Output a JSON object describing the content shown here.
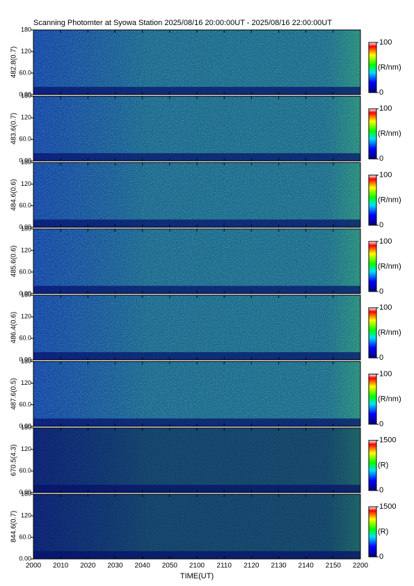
{
  "chart_data": {
    "type": "heatmap",
    "title": "Scanning Photomter at Syowa Station 2025/08/16 20:00:00UT - 2025/08/16 22:00:00UT",
    "xlabel": "TIME(UT)",
    "xticks": [
      "2000",
      "2010",
      "2020",
      "2030",
      "2040",
      "2050",
      "2100",
      "2110",
      "2120",
      "2130",
      "2140",
      "2150",
      "2200"
    ],
    "panels": [
      {
        "ylabel": "482.8(0.7)",
        "ylim": [
          0,
          180
        ],
        "yticks": [
          {
            "value": 0,
            "label": "0.00"
          },
          {
            "value": 60,
            "label": "60.0"
          },
          120,
          180
        ],
        "colorbar_label": "(R/nm)",
        "clim": [
          0,
          100
        ],
        "cticks": [
          0,
          100
        ]
      },
      {
        "ylabel": "483.6(0.7)",
        "ylim": [
          0,
          180
        ],
        "yticks": [
          {
            "value": 0,
            "label": "0.00"
          },
          {
            "value": 60,
            "label": "60.0"
          },
          120,
          180
        ],
        "colorbar_label": "(R/nm)",
        "clim": [
          0,
          100
        ],
        "cticks": [
          0,
          100
        ]
      },
      {
        "ylabel": "484.6(0.6)",
        "ylim": [
          0,
          180
        ],
        "yticks": [
          {
            "value": 0,
            "label": "0.00"
          },
          {
            "value": 60,
            "label": "60.0"
          },
          120,
          180
        ],
        "colorbar_label": "(R/nm)",
        "clim": [
          0,
          100
        ],
        "cticks": [
          0,
          100
        ]
      },
      {
        "ylabel": "485.6(0.6)",
        "ylim": [
          0,
          180
        ],
        "yticks": [
          {
            "value": 0,
            "label": "0.00"
          },
          {
            "value": 60,
            "label": "60.0"
          },
          120,
          180
        ],
        "colorbar_label": "(R/nm)",
        "clim": [
          0,
          100
        ],
        "cticks": [
          0,
          100
        ]
      },
      {
        "ylabel": "486.4(0.6)",
        "ylim": [
          0,
          180
        ],
        "yticks": [
          {
            "value": 0,
            "label": "0.00"
          },
          {
            "value": 60,
            "label": "60.0"
          },
          120,
          180
        ],
        "colorbar_label": "(R/nm)",
        "clim": [
          0,
          100
        ],
        "cticks": [
          0,
          100
        ]
      },
      {
        "ylabel": "487.6(0.5)",
        "ylim": [
          0,
          180
        ],
        "yticks": [
          {
            "value": 0,
            "label": "0.00"
          },
          {
            "value": 60,
            "label": "60.0"
          },
          120,
          180
        ],
        "colorbar_label": "(R/nm)",
        "clim": [
          0,
          100
        ],
        "cticks": [
          0,
          100
        ]
      },
      {
        "ylabel": "670.5(4.3)",
        "ylim": [
          0,
          180
        ],
        "yticks": [
          {
            "value": 0,
            "label": "0.00"
          },
          {
            "value": 60,
            "label": "60.0"
          },
          120,
          180
        ],
        "colorbar_label": "(R)",
        "clim": [
          0,
          1500
        ],
        "cticks": [
          0,
          1500
        ]
      },
      {
        "ylabel": "844.6(0.7)",
        "ylim": [
          0,
          180
        ],
        "yticks": [
          {
            "value": 0,
            "label": "0.00"
          },
          {
            "value": 60,
            "label": "60.0"
          },
          120,
          180
        ],
        "colorbar_label": "(R)",
        "clim": [
          0,
          1500
        ],
        "cticks": [
          0,
          1500
        ]
      }
    ]
  }
}
